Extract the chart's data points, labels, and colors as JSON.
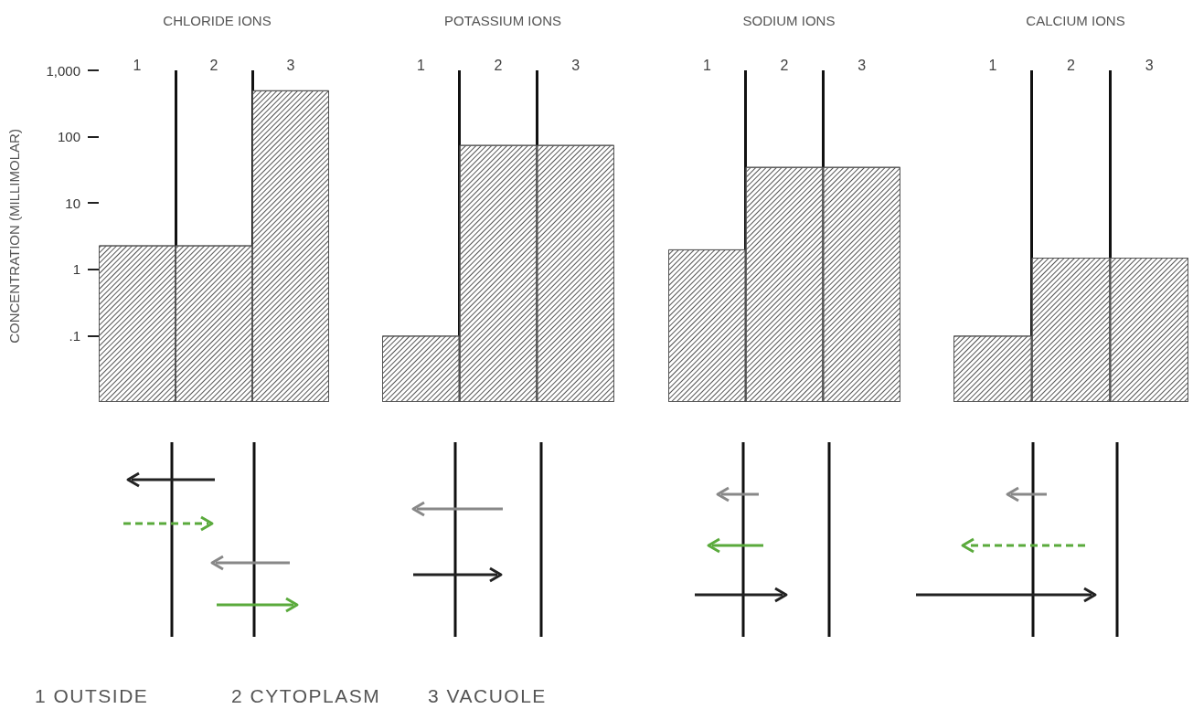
{
  "chart_data": [
    {
      "type": "bar",
      "title": "CHLORIDE IONS",
      "ylabel": "CONCENTRATION (MILLIMOLAR)",
      "categories": [
        "1",
        "2",
        "3"
      ],
      "series": [
        {
          "color": "#555555",
          "values": [
            2.3,
            2.3,
            500
          ]
        }
      ],
      "log": true,
      "grid": "x",
      "ylim": [
        0.01,
        1000
      ],
      "yticks": [
        {
          "value": 0.1,
          "label": ".1"
        },
        1,
        10,
        100,
        {
          "value": 1000,
          "label": "1,000"
        }
      ],
      "annotations": [
        "1 OUTSIDE",
        "2 CYTOPLASM",
        "3 VACUOLE"
      ]
    },
    {
      "type": "bar",
      "title": "POTASSIUM IONS",
      "categories": [
        "1",
        "2",
        "3"
      ],
      "series": [
        {
          "color": "#555555",
          "values": [
            0.1,
            75,
            75
          ]
        }
      ],
      "log": true,
      "grid": "x",
      "ylim": [
        0.01,
        1000
      ],
      "tick_labels": "x"
    },
    {
      "type": "bar",
      "title": "SODIUM IONS",
      "categories": [
        "1",
        "2",
        "3"
      ],
      "series": [
        {
          "color": "#555555",
          "values": [
            2,
            35,
            35
          ]
        }
      ],
      "log": true,
      "grid": "x",
      "ylim": [
        0.01,
        1000
      ],
      "tick_labels": "x"
    },
    {
      "type": "bar",
      "title": "CALCIUM IONS",
      "categories": [
        "1",
        "2",
        "3"
      ],
      "series": [
        {
          "color": "#555555",
          "values": [
            0.1,
            1.5,
            1.5
          ]
        }
      ],
      "log": true,
      "grid": "x",
      "ylim": [
        0.01,
        1000
      ],
      "tick_labels": "x"
    }
  ]
}
